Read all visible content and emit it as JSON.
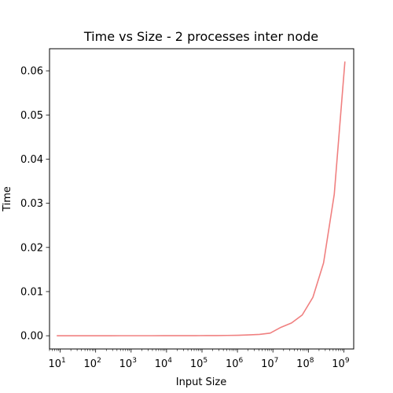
{
  "chart_data": {
    "type": "line",
    "title": "Time vs Size - 2 processes inter node",
    "xlabel": "Input Size",
    "ylabel": "Time",
    "xscale": "log",
    "xlim": [
      5,
      1900000000
    ],
    "ylim": [
      -0.003,
      0.065
    ],
    "grid": false,
    "x_ticks": [
      {
        "value": 10,
        "base": "10",
        "exp": "1"
      },
      {
        "value": 100,
        "base": "10",
        "exp": "2"
      },
      {
        "value": 1000,
        "base": "10",
        "exp": "3"
      },
      {
        "value": 10000,
        "base": "10",
        "exp": "4"
      },
      {
        "value": 100000,
        "base": "10",
        "exp": "5"
      },
      {
        "value": 1000000,
        "base": "10",
        "exp": "6"
      },
      {
        "value": 10000000,
        "base": "10",
        "exp": "7"
      },
      {
        "value": 100000000,
        "base": "10",
        "exp": "8"
      },
      {
        "value": 1000000000,
        "base": "10",
        "exp": "9"
      }
    ],
    "y_ticks": [
      {
        "value": 0.0,
        "label": "0.00"
      },
      {
        "value": 0.01,
        "label": "0.01"
      },
      {
        "value": 0.02,
        "label": "0.02"
      },
      {
        "value": 0.03,
        "label": "0.03"
      },
      {
        "value": 0.04,
        "label": "0.04"
      },
      {
        "value": 0.05,
        "label": "0.05"
      },
      {
        "value": 0.06,
        "label": "0.06"
      }
    ],
    "series": [
      {
        "color": "#f08080",
        "x": [
          8,
          16,
          32,
          64,
          128,
          256,
          512,
          1024,
          2048,
          4096,
          8192,
          16384,
          32768,
          65536,
          131072,
          262144,
          524288,
          1048576,
          2097152,
          4194304,
          8388608,
          16777216,
          33554432,
          67108864,
          134217728,
          268435456,
          536870912,
          1073741824
        ],
        "y": [
          2e-06,
          2e-06,
          2e-06,
          2e-06,
          2e-06,
          2e-06,
          3e-06,
          3e-06,
          4e-06,
          5e-06,
          7e-06,
          1e-05,
          1.5e-05,
          2.2e-05,
          3e-05,
          4.5e-05,
          7e-05,
          0.00011,
          0.0002,
          0.0003,
          0.0006,
          0.0019,
          0.0029,
          0.0047,
          0.0087,
          0.0165,
          0.032,
          0.0621
        ]
      }
    ]
  }
}
